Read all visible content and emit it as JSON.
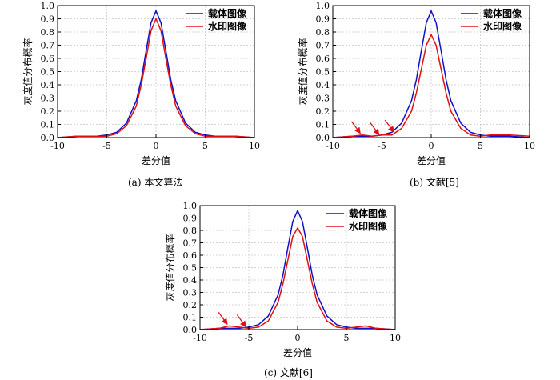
{
  "chart_data": [
    {
      "type": "line",
      "caption": "(a) 本文算法",
      "xlabel": "差分值",
      "ylabel": "灰度值分布概率",
      "xlim": [
        -10,
        10
      ],
      "ylim": [
        0,
        1.0
      ],
      "xticks": [
        -10,
        -5,
        0,
        5,
        10
      ],
      "yticks": [
        0.0,
        0.1,
        0.2,
        0.3,
        0.4,
        0.5,
        0.6,
        0.7,
        0.8,
        0.9,
        1.0
      ],
      "grid": true,
      "legend_position": "top-right",
      "series": [
        {
          "name": "载体图像",
          "color": "#1010c8",
          "x": [
            -10,
            -8,
            -6,
            -5,
            -4,
            -3,
            -2,
            -1.5,
            -1,
            -0.5,
            0,
            0.5,
            1,
            1.5,
            2,
            3,
            4,
            5,
            6,
            8,
            10
          ],
          "y": [
            0.0,
            0.01,
            0.01,
            0.02,
            0.04,
            0.11,
            0.28,
            0.44,
            0.66,
            0.87,
            0.96,
            0.87,
            0.66,
            0.44,
            0.28,
            0.11,
            0.04,
            0.02,
            0.01,
            0.01,
            0.0
          ]
        },
        {
          "name": "水印图像",
          "color": "#e01010",
          "x": [
            -10,
            -8,
            -6,
            -5,
            -4,
            -3,
            -2,
            -1.5,
            -1,
            -0.5,
            0,
            0.5,
            1,
            1.5,
            2,
            3,
            4,
            5,
            6,
            8,
            10
          ],
          "y": [
            0.0,
            0.01,
            0.01,
            0.01,
            0.03,
            0.09,
            0.24,
            0.4,
            0.6,
            0.81,
            0.9,
            0.81,
            0.6,
            0.4,
            0.24,
            0.09,
            0.03,
            0.01,
            0.01,
            0.01,
            0.0
          ]
        }
      ],
      "annotations": []
    },
    {
      "type": "line",
      "caption": "(b) 文献[5]",
      "xlabel": "差分值",
      "ylabel": "灰度值分布概率",
      "xlim": [
        -10,
        10
      ],
      "ylim": [
        0,
        1.0
      ],
      "xticks": [
        -10,
        -5,
        0,
        5,
        10
      ],
      "yticks": [
        0.0,
        0.1,
        0.2,
        0.3,
        0.4,
        0.5,
        0.6,
        0.7,
        0.8,
        0.9,
        1.0
      ],
      "grid": true,
      "legend_position": "top-right",
      "series": [
        {
          "name": "载体图像",
          "color": "#1010c8",
          "x": [
            -10,
            -8,
            -6,
            -5,
            -4,
            -3,
            -2,
            -1.5,
            -1,
            -0.5,
            0,
            0.5,
            1,
            1.5,
            2,
            3,
            4,
            5,
            6,
            8,
            10
          ],
          "y": [
            0.0,
            0.01,
            0.01,
            0.02,
            0.04,
            0.11,
            0.28,
            0.44,
            0.66,
            0.87,
            0.96,
            0.87,
            0.66,
            0.44,
            0.28,
            0.11,
            0.04,
            0.02,
            0.01,
            0.01,
            0.0
          ]
        },
        {
          "name": "水印图像",
          "color": "#e01010",
          "x": [
            -10,
            -8,
            -7,
            -6,
            -5,
            -4,
            -3,
            -2,
            -1.5,
            -1,
            -0.5,
            0,
            0.5,
            1,
            1.5,
            2,
            3,
            4,
            5,
            6,
            7,
            8,
            10
          ],
          "y": [
            0.0,
            0.01,
            0.02,
            0.01,
            0.02,
            0.02,
            0.07,
            0.2,
            0.34,
            0.52,
            0.7,
            0.78,
            0.7,
            0.52,
            0.34,
            0.2,
            0.07,
            0.02,
            0.01,
            0.02,
            0.02,
            0.02,
            0.01
          ]
        }
      ],
      "annotations": [
        {
          "type": "arrow",
          "x": -7.2,
          "y": 0.02
        },
        {
          "type": "arrow",
          "x": -5.3,
          "y": 0.01
        },
        {
          "type": "arrow",
          "x": -3.8,
          "y": 0.03
        }
      ]
    },
    {
      "type": "line",
      "caption": "(c) 文献[6]",
      "xlabel": "差分值",
      "ylabel": "灰度值分布概率",
      "xlim": [
        -10,
        10
      ],
      "ylim": [
        0,
        1.0
      ],
      "xticks": [
        -10,
        -5,
        0,
        5,
        10
      ],
      "yticks": [
        0.0,
        0.1,
        0.2,
        0.3,
        0.4,
        0.5,
        0.6,
        0.7,
        0.8,
        0.9,
        1.0
      ],
      "grid": true,
      "legend_position": "top-right",
      "series": [
        {
          "name": "载体图像",
          "color": "#1010c8",
          "x": [
            -10,
            -8,
            -6,
            -5,
            -4,
            -3,
            -2,
            -1.5,
            -1,
            -0.5,
            0,
            0.5,
            1,
            1.5,
            2,
            3,
            4,
            5,
            6,
            8,
            10
          ],
          "y": [
            0.0,
            0.01,
            0.01,
            0.02,
            0.04,
            0.11,
            0.28,
            0.44,
            0.66,
            0.87,
            0.96,
            0.87,
            0.66,
            0.44,
            0.28,
            0.11,
            0.04,
            0.02,
            0.01,
            0.01,
            0.0
          ]
        },
        {
          "name": "水印图像",
          "color": "#e01010",
          "x": [
            -10,
            -8,
            -7,
            -6,
            -5,
            -4,
            -3,
            -2,
            -1.5,
            -1,
            -0.5,
            0,
            0.5,
            1,
            1.5,
            2,
            3,
            4,
            5,
            6,
            7,
            8,
            10
          ],
          "y": [
            0.0,
            0.01,
            0.03,
            0.02,
            0.01,
            0.02,
            0.07,
            0.22,
            0.37,
            0.56,
            0.75,
            0.82,
            0.75,
            0.56,
            0.37,
            0.22,
            0.07,
            0.02,
            0.01,
            0.02,
            0.03,
            0.01,
            0.0
          ]
        }
      ],
      "annotations": [
        {
          "type": "arrow",
          "x": -7.2,
          "y": 0.03
        },
        {
          "type": "arrow",
          "x": -5.3,
          "y": 0.01
        }
      ]
    }
  ]
}
